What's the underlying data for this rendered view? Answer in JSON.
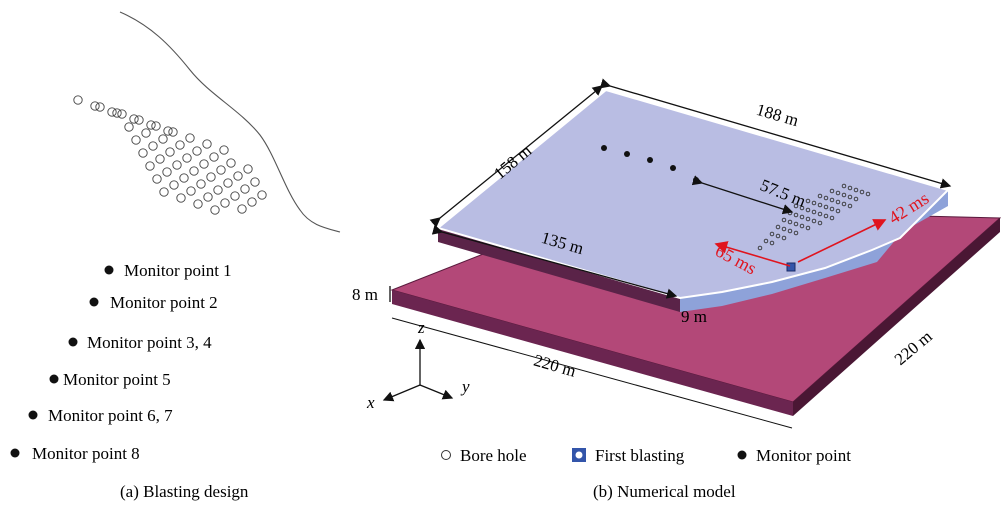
{
  "panel_a": {
    "caption": "(a) Blasting design",
    "monitor_points": [
      "Monitor point 1",
      "Monitor point 2",
      "Monitor point 3, 4",
      "Monitor point 5",
      "Monitor point 6, 7",
      "Monitor point 8"
    ]
  },
  "panel_b": {
    "caption": "(b) Numerical model",
    "dimensions": {
      "top_left": "158 m",
      "top_right": "188 m",
      "front_top": "135 m",
      "distance": "57.5 m",
      "base_front": "220 m",
      "base_right": "220 m",
      "thickness_left": "8 m",
      "thickness_front": "9 m"
    },
    "delays": {
      "delay_a": "65 ms",
      "delay_b": "42 ms"
    },
    "axes": {
      "x": "x",
      "y": "y",
      "z": "z"
    },
    "legend": {
      "bore_hole": "Bore hole",
      "first_blasting": "First blasting",
      "monitor_point": "Monitor point"
    }
  },
  "colors": {
    "top_surface": "#b9bde3",
    "layer_front": "#5a2348",
    "base_top": "#b34878",
    "base_front": "#6b2550",
    "edge_blue": "#8ea2d9",
    "red_annotation": "#e0141e",
    "first_blast": "#3355aa"
  }
}
